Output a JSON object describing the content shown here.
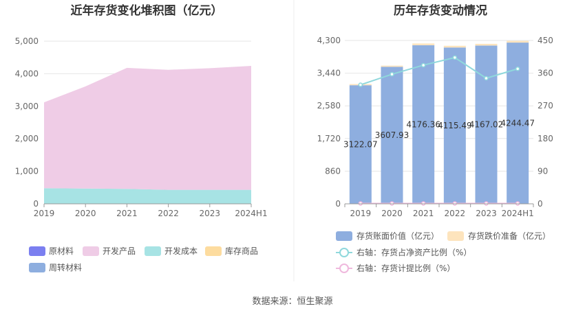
{
  "left_chart": {
    "title": "近年存货变化堆积图（亿元）",
    "chart_data": {
      "type": "area",
      "stacked": true,
      "title": "近年存货变化堆积图（亿元）",
      "x": [
        "2019",
        "2020",
        "2021",
        "2022",
        "2023",
        "2024H1"
      ],
      "ylim": [
        0,
        5000
      ],
      "yticks": [
        "0",
        "1,000",
        "2,000",
        "3,000",
        "4,000",
        "5,000"
      ],
      "grid": true,
      "legend_position": "bottom",
      "series": [
        {
          "name": "原材料",
          "color": "#7b7ff0",
          "values": [
            0,
            0,
            0,
            0,
            0,
            0
          ]
        },
        {
          "name": "开发成本",
          "color": "#a7e3e4",
          "values": [
            480,
            470,
            460,
            430,
            430,
            430
          ]
        },
        {
          "name": "开发产品",
          "color": "#efcce6",
          "values": [
            2640,
            3140,
            3720,
            3690,
            3740,
            3810
          ]
        },
        {
          "name": "库存商品",
          "color": "#fddc9f",
          "values": [
            0,
            0,
            0,
            0,
            0,
            0
          ]
        },
        {
          "name": "周转材料",
          "color": "#8eaedf",
          "values": [
            0,
            0,
            0,
            0,
            0,
            0
          ]
        }
      ],
      "legend": [
        "原材料",
        "开发产品",
        "开发成本",
        "库存商品",
        "周转材料"
      ]
    }
  },
  "right_chart": {
    "title": "历年存货变动情况",
    "chart_data": {
      "type": "bar",
      "title": "历年存货变动情况",
      "categories": [
        "2019",
        "2020",
        "2021",
        "2022",
        "2023",
        "2024H1"
      ],
      "ylim": [
        0,
        4300
      ],
      "yticks": [
        "0",
        "860",
        "1,720",
        "2,580",
        "3,440",
        "4,300"
      ],
      "y2lim": [
        0,
        450
      ],
      "y2ticks": [
        "0",
        "90",
        "180",
        "270",
        "360",
        "450"
      ],
      "legend_position": "bottom",
      "series": [
        {
          "name": "存货账面价值（亿元）",
          "type": "bar",
          "axis": "left",
          "color": "#8eaedf",
          "values": [
            3122.07,
            3607.93,
            4176.36,
            4115.49,
            4167.02,
            4244.47
          ],
          "labels": [
            "3122.07",
            "3607.93",
            "4176.36",
            "4115.49",
            "4167.02",
            "4244.47"
          ]
        },
        {
          "name": "存货跌价准备（亿元）",
          "type": "bar",
          "axis": "left",
          "color": "#fde4bd",
          "values": [
            30,
            30,
            45,
            45,
            45,
            45
          ]
        },
        {
          "name": "右轴：存货占净资产比例（%）",
          "type": "line",
          "axis": "right",
          "color": "#8fd8dc",
          "values": [
            328,
            357,
            382,
            403,
            346,
            372
          ]
        },
        {
          "name": "右轴：存货计提比例（%）",
          "type": "line",
          "axis": "right",
          "color": "#efb8dd",
          "values": [
            1,
            1,
            1,
            1,
            1,
            1
          ]
        }
      ]
    }
  },
  "source": "数据来源：恒生聚源"
}
